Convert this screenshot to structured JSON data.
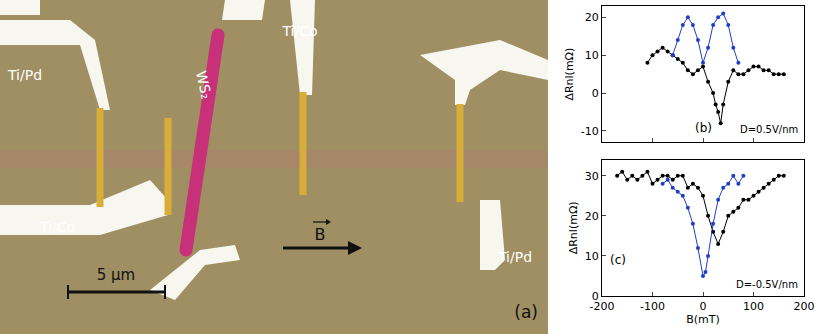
{
  "photo": {
    "panel": "(a)",
    "labels": [
      "Ti/Pd",
      "WS₂",
      "Ti/Co",
      "Ti/Co",
      "Ti/Pd"
    ],
    "scale_bar": "5 µm",
    "field": "B"
  },
  "chart_data": [
    {
      "type": "line",
      "marker": "circle",
      "grid": false,
      "tick_labels": "y",
      "y_label": "ΔRnl(mΩ)",
      "xlim": [
        -200,
        200
      ],
      "xticks": [
        -200,
        -100,
        0,
        100,
        200
      ],
      "ylim": [
        -13,
        23
      ],
      "yticks": [
        -10,
        0,
        10,
        20
      ],
      "annotations": [
        "(b)",
        "D=0.5V/nm"
      ],
      "series": [
        {
          "color": "#000000",
          "x": [
            -110,
            -100,
            -90,
            -80,
            -70,
            -60,
            -50,
            -40,
            -30,
            -20,
            -10,
            0,
            10,
            20,
            25,
            30,
            35,
            40,
            50,
            60,
            70,
            80,
            90,
            100,
            110,
            120,
            130,
            140,
            150,
            160
          ],
          "values": [
            8,
            10,
            11,
            12,
            11,
            10,
            9,
            8,
            6,
            5,
            6,
            7,
            3,
            0,
            -3,
            -5,
            -8,
            -3,
            3,
            6,
            5,
            5,
            6,
            7,
            7,
            6,
            6,
            5,
            5,
            5
          ]
        },
        {
          "color": "#1f3fc8",
          "x": [
            -60,
            -50,
            -40,
            -30,
            -20,
            -10,
            0,
            10,
            20,
            30,
            40,
            50,
            60,
            70
          ],
          "values": [
            10,
            14,
            18,
            20,
            18,
            14,
            8,
            12,
            18,
            20,
            21,
            18,
            12,
            8
          ]
        }
      ]
    },
    {
      "type": "line",
      "marker": "circle",
      "grid": false,
      "x_label": "B(mT)",
      "y_label": "ΔRnl(mΩ)",
      "xlim": [
        -200,
        200
      ],
      "xticks": [
        -200,
        -100,
        0,
        100,
        200
      ],
      "ylim": [
        0,
        34
      ],
      "yticks": [
        0,
        10,
        20,
        30
      ],
      "annotations": [
        "(c)",
        "D=-0.5V/nm"
      ],
      "series": [
        {
          "color": "#000000",
          "x": [
            -170,
            -160,
            -150,
            -140,
            -130,
            -120,
            -110,
            -100,
            -90,
            -80,
            -70,
            -60,
            -50,
            -40,
            -30,
            -20,
            -10,
            0,
            10,
            20,
            30,
            40,
            50,
            60,
            70,
            80,
            90,
            100,
            110,
            120,
            130,
            140,
            150,
            160
          ],
          "values": [
            30,
            31,
            29,
            30,
            29,
            30,
            31,
            28,
            29,
            30,
            30,
            29,
            30,
            30,
            27,
            28,
            27,
            25,
            20,
            16,
            13,
            16,
            20,
            21,
            22,
            24,
            24,
            25,
            26,
            27,
            28,
            29,
            30,
            30
          ]
        },
        {
          "color": "#1f3fc8",
          "x": [
            -80,
            -70,
            -60,
            -50,
            -40,
            -30,
            -20,
            -10,
            0,
            5,
            10,
            20,
            30,
            40,
            50,
            60,
            70,
            80
          ],
          "values": [
            28,
            29,
            27,
            26,
            25,
            22,
            18,
            12,
            5,
            6,
            10,
            18,
            24,
            27,
            28,
            30,
            28,
            30
          ]
        }
      ]
    }
  ]
}
